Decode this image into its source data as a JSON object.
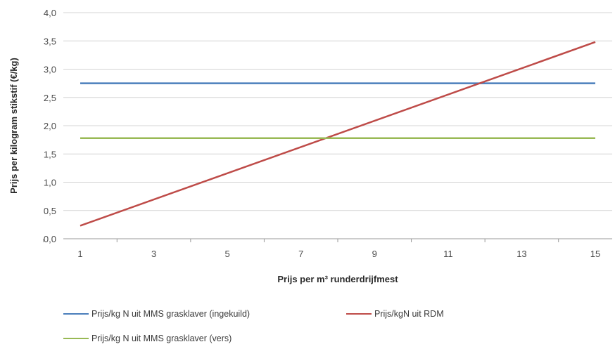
{
  "chart_data": {
    "type": "line",
    "x": [
      1,
      15
    ],
    "xticks": [
      "1",
      "3",
      "5",
      "7",
      "9",
      "11",
      "13",
      "15"
    ],
    "yticks": [
      "0,0",
      "0,5",
      "1,0",
      "1,5",
      "2,0",
      "2,5",
      "3,0",
      "3,5",
      "4,0"
    ],
    "xlim": [
      1,
      15
    ],
    "ylim": [
      0,
      4
    ],
    "xlabel": "Prijs per m³ runderdrijfmest",
    "ylabel": "Prijs per kilogram stikstif (€/kg)",
    "grid": "horizontal",
    "legend_position": "bottom",
    "series": [
      {
        "name": "Prijs/kg N uit MMS grasklaver (ingekuild)",
        "color": "#4a7ebb",
        "values": [
          2.75,
          2.75
        ]
      },
      {
        "name": "Prijs/kgN uit RDM",
        "color": "#be4b48",
        "values": [
          0.23,
          3.48
        ]
      },
      {
        "name": "Prijs/kg N uit MMS grasklaver (vers)",
        "color": "#98b954",
        "values": [
          1.78,
          1.78
        ]
      }
    ]
  }
}
